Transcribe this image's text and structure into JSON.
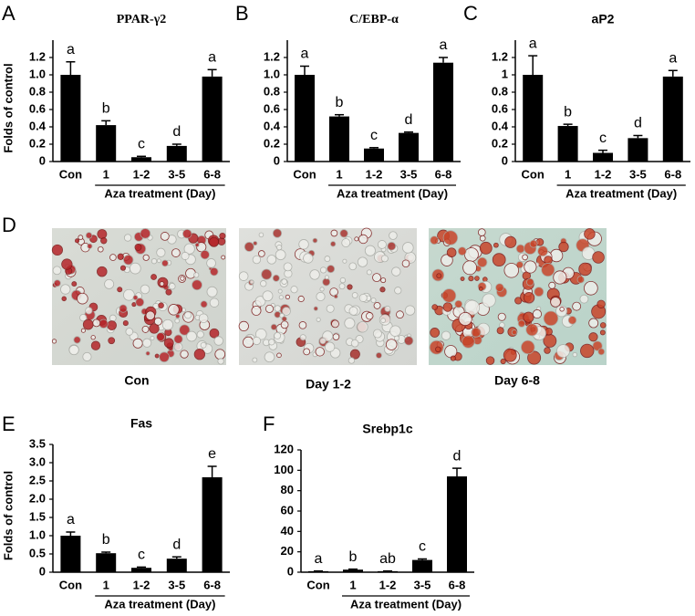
{
  "chart_data": [
    {
      "type": "bar",
      "panel": "A",
      "title": "PPAR-γ2",
      "ylabel": "Folds of control",
      "xlabel": "Aza treatment (Day)",
      "categories": [
        "Con",
        "1",
        "1-2",
        "3-5",
        "6-8"
      ],
      "values": [
        1.0,
        0.42,
        0.05,
        0.18,
        0.98
      ],
      "errors": [
        0.15,
        0.05,
        0.01,
        0.02,
        0.08
      ],
      "annotations": [
        "a",
        "b",
        "c",
        "d",
        "a"
      ],
      "color": "#000000",
      "ylim": [
        0,
        1.4
      ],
      "yticks": [
        0,
        0.2,
        0.4,
        0.6,
        0.8,
        {
          "value": 1,
          "label": "1.0"
        },
        1.2
      ]
    },
    {
      "type": "bar",
      "panel": "B",
      "title": "C/EBP-α",
      "xlabel": "Aza treatment (Day)",
      "categories": [
        "Con",
        "1",
        "1-2",
        "3-5",
        "6-8"
      ],
      "values": [
        1.0,
        0.52,
        0.15,
        0.33,
        1.14
      ],
      "errors": [
        0.1,
        0.02,
        0.01,
        0.01,
        0.06
      ],
      "annotations": [
        "a",
        "b",
        "c",
        "d",
        "a"
      ],
      "color": "#000000",
      "ylim": [
        0,
        1.4
      ],
      "yticks": [
        0,
        0.2,
        0.4,
        0.6,
        0.8,
        {
          "value": 1,
          "label": "1.0"
        },
        1.2
      ]
    },
    {
      "type": "bar",
      "panel": "C",
      "title": "aP2",
      "xlabel": "Aza treatment (Day)",
      "categories": [
        "Con",
        "1",
        "1-2",
        "3-5",
        "6-8"
      ],
      "values": [
        1.0,
        0.41,
        0.1,
        0.27,
        0.98
      ],
      "errors": [
        0.22,
        0.02,
        0.03,
        0.03,
        0.07
      ],
      "annotations": [
        "a",
        "b",
        "c",
        "d",
        "a"
      ],
      "color": "#000000",
      "ylim": [
        0,
        1.4
      ],
      "yticks": [
        0,
        0.2,
        0.4,
        0.6,
        0.8,
        1,
        1.2
      ]
    },
    {
      "type": "bar",
      "panel": "E",
      "title": "Fas",
      "ylabel": "Folds of control",
      "xlabel": "Aza treatment (Day)",
      "categories": [
        "Con",
        "1",
        "1-2",
        "3-5",
        "6-8"
      ],
      "values": [
        1.0,
        0.52,
        0.12,
        0.37,
        2.6
      ],
      "errors": [
        0.1,
        0.03,
        0.02,
        0.05,
        0.3
      ],
      "annotations": [
        "a",
        "b",
        "c",
        "d",
        "e"
      ],
      "color": "#000000",
      "ylim": [
        0,
        3.5
      ],
      "yticks": [
        0,
        0.5,
        {
          "value": 1,
          "label": "1.0"
        },
        1.5,
        {
          "value": 2,
          "label": "2.0"
        },
        2.5,
        {
          "value": 3,
          "label": "3.0"
        },
        3.5
      ]
    },
    {
      "type": "bar",
      "panel": "F",
      "title": "Srebp1c",
      "xlabel": "Aza treatment (Day)",
      "categories": [
        "Con",
        "1",
        "1-2",
        "3-5",
        "6-8"
      ],
      "values": [
        1,
        2.5,
        1,
        12,
        94
      ],
      "errors": [
        0.2,
        0.5,
        0.2,
        1,
        8
      ],
      "annotations": [
        "a",
        "b",
        "ab",
        "c",
        "d"
      ],
      "color": "#000000",
      "ylim": [
        0,
        120
      ],
      "yticks": [
        0,
        20,
        40,
        60,
        80,
        100,
        120
      ]
    }
  ],
  "images": {
    "panel": "D",
    "captions": [
      "Con",
      "Day 1-2",
      "Day 6-8"
    ]
  }
}
